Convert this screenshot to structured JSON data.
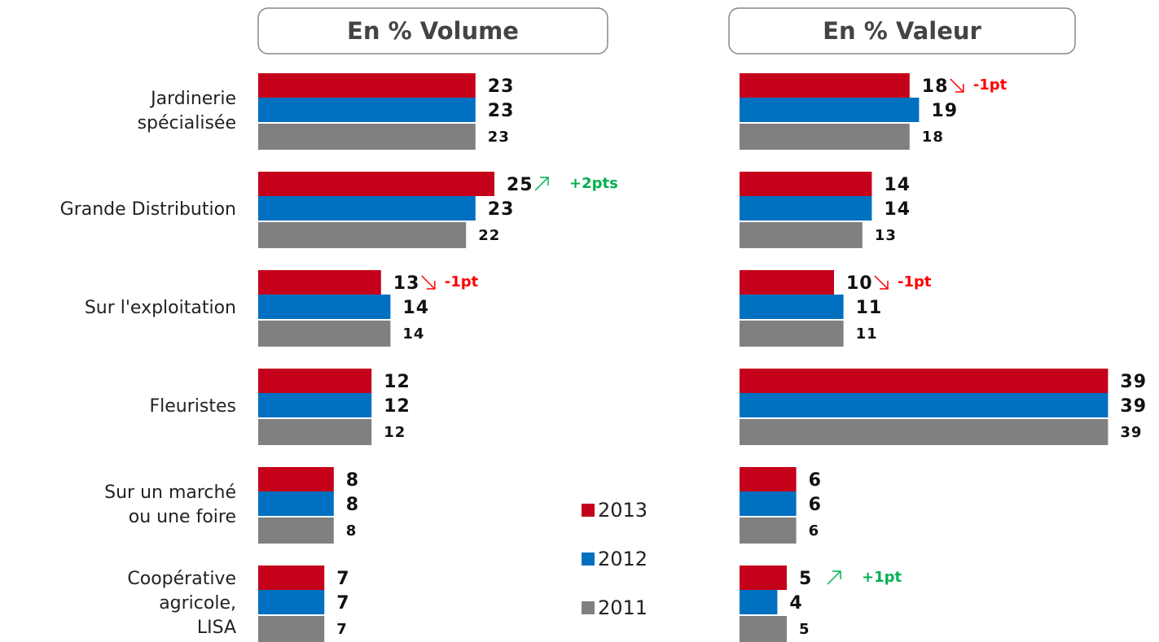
{
  "chart_data": {
    "type": "bar",
    "orientation": "horizontal",
    "categories": [
      "Jardinerie\nspécialisée",
      "Grande Distribution",
      "Sur l'exploitation",
      "Fleuristes",
      "Sur un marché\nou une foire",
      "Coopérative\nagricole,\nLISA"
    ],
    "xlim": [
      0,
      40
    ],
    "series": [
      {
        "name": "2013",
        "color": "#c4001a"
      },
      {
        "name": "2012",
        "color": "#0070c0"
      },
      {
        "name": "2011",
        "color": "#808080"
      }
    ],
    "panels": [
      {
        "title": "En % Volume",
        "values": [
          [
            23,
            25,
            13,
            12,
            8,
            7
          ],
          [
            23,
            23,
            14,
            12,
            8,
            7
          ],
          [
            23,
            22,
            14,
            12,
            8,
            7
          ]
        ],
        "annotations": [
          {
            "row": 1,
            "text": "+2pts",
            "direction": "up",
            "color": "#00b050"
          },
          {
            "row": 2,
            "text": "-1pt",
            "direction": "down",
            "color": "#ff0000"
          }
        ]
      },
      {
        "title": "En % Valeur",
        "values": [
          [
            18,
            14,
            10,
            39,
            6,
            5
          ],
          [
            19,
            14,
            11,
            39,
            6,
            4
          ],
          [
            18,
            13,
            11,
            39,
            6,
            5
          ]
        ],
        "annotations": [
          {
            "row": 0,
            "text": "-1pt",
            "direction": "down",
            "color": "#ff0000"
          },
          {
            "row": 2,
            "text": "-1pt",
            "direction": "down",
            "color": "#ff0000"
          },
          {
            "row": 5,
            "text": "+1pt",
            "direction": "up",
            "color": "#00b050"
          }
        ]
      }
    ]
  }
}
